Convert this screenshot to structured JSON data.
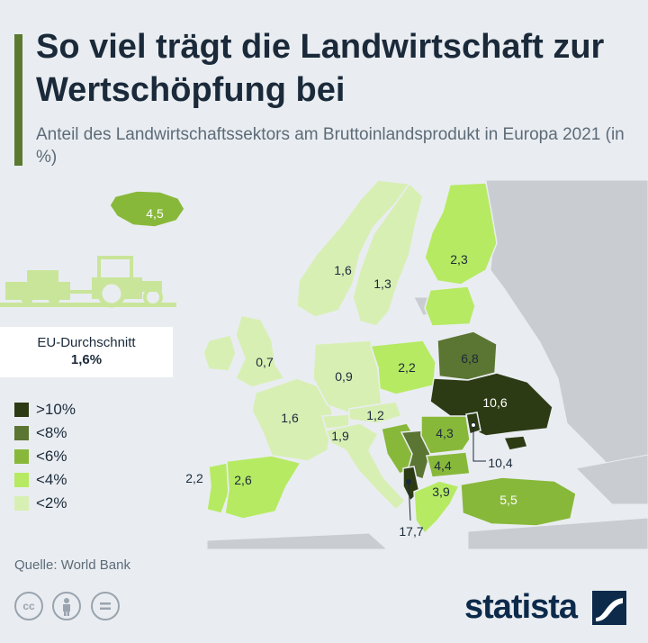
{
  "header": {
    "title": "So viel trägt die Landwirtschaft zur Wertschöpfung bei",
    "subtitle": "Anteil des Landwirtschaftssektors am Bruttoinlandsprodukt in Europa 2021 (in %)"
  },
  "eu_average": {
    "label": "EU-Durchschnitt",
    "value": "1,6%"
  },
  "legend": [
    {
      "label": ">10%",
      "color": "#2d3b14"
    },
    {
      "label": "<8%",
      "color": "#5b7532"
    },
    {
      "label": "<6%",
      "color": "#88b83a"
    },
    {
      "label": "<4%",
      "color": "#b6ea62"
    },
    {
      "label": "<2%",
      "color": "#d8efb4"
    }
  ],
  "countries": [
    {
      "name": "Island",
      "value": "4,5",
      "category": "<6%"
    },
    {
      "name": "Norwegen",
      "value": "1,6",
      "category": "<2%"
    },
    {
      "name": "Schweden",
      "value": "1,3",
      "category": "<2%"
    },
    {
      "name": "Finnland",
      "value": "2,3",
      "category": "<4%"
    },
    {
      "name": "Vereinigtes Königreich",
      "value": "0,7",
      "category": "<2%"
    },
    {
      "name": "Deutschland",
      "value": "0,9",
      "category": "<2%"
    },
    {
      "name": "Polen",
      "value": "2,2",
      "category": "<4%"
    },
    {
      "name": "Belarus",
      "value": "6,8",
      "category": "<8%"
    },
    {
      "name": "Ukraine",
      "value": "10,6",
      "category": ">10%"
    },
    {
      "name": "Frankreich",
      "value": "1,6",
      "category": "<2%"
    },
    {
      "name": "Österreich",
      "value": "1,2",
      "category": "<2%"
    },
    {
      "name": "Italien",
      "value": "1,9",
      "category": "<2%"
    },
    {
      "name": "Rumänien",
      "value": "4,3",
      "category": "<6%"
    },
    {
      "name": "Bulgarien",
      "value": "4,4",
      "category": "<6%"
    },
    {
      "name": "Moldau",
      "value": "10,4",
      "category": ">10%"
    },
    {
      "name": "Portugal",
      "value": "2,2",
      "category": "<4%"
    },
    {
      "name": "Spanien",
      "value": "2,6",
      "category": "<4%"
    },
    {
      "name": "Griechenland",
      "value": "3,9",
      "category": "<4%"
    },
    {
      "name": "Albanien",
      "value": "17,7",
      "category": ">10%"
    },
    {
      "name": "Türkei",
      "value": "5,5",
      "category": "<6%"
    }
  ],
  "source": "Quelle: World Bank",
  "license_icons": [
    "cc-icon",
    "attribution-icon",
    "no-derivatives-icon"
  ],
  "brand": "statista",
  "colors": {
    "accent": "#5b7a30",
    "background": "#e9edf1",
    "land_other": "#c9cdd2",
    "text": "#1b2a3a"
  }
}
